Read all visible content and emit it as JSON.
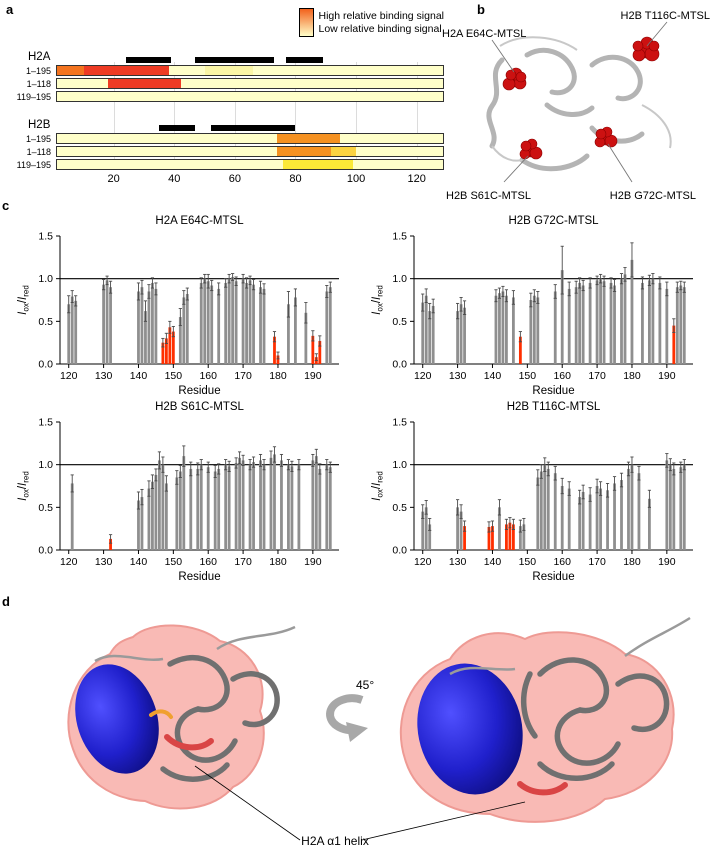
{
  "figure": {
    "panel_labels": {
      "a": "a",
      "b": "b",
      "c": "c",
      "d": "d"
    }
  },
  "panel_a": {
    "legend": {
      "high": "High relative binding signal",
      "low": "Low relative binding signal",
      "high_color": "#f2611c",
      "low_color": "#ffffc9"
    },
    "base_color": "#ffffc9",
    "domain": {
      "min": 1,
      "max": 129
    },
    "axis_ticks": [
      20,
      40,
      60,
      80,
      100,
      120
    ],
    "groups": [
      {
        "name": "H2A",
        "helix_bars": [
          [
            24,
            39
          ],
          [
            47,
            73
          ],
          [
            77,
            89
          ]
        ],
        "rows": [
          {
            "label": "1–195",
            "segments": [
              {
                "from": 1,
                "to": 10,
                "color": "#f4741f"
              },
              {
                "from": 10,
                "to": 38,
                "color": "#ee3b24"
              },
              {
                "from": 50,
                "to": 66,
                "color": "#fbf6a6"
              }
            ]
          },
          {
            "label": "1–118",
            "segments": [
              {
                "from": 18,
                "to": 42,
                "color": "#ee3b24"
              }
            ]
          },
          {
            "label": "119–195",
            "segments": []
          }
        ]
      },
      {
        "name": "H2B",
        "helix_bars": [
          [
            35,
            47
          ],
          [
            52,
            80
          ]
        ],
        "rows": [
          {
            "label": "1–195",
            "segments": [
              {
                "from": 74,
                "to": 95,
                "color": "#f59121"
              }
            ]
          },
          {
            "label": "1–118",
            "segments": [
              {
                "from": 74,
                "to": 92,
                "color": "#f59121"
              },
              {
                "from": 92,
                "to": 100,
                "color": "#fbd341"
              }
            ]
          },
          {
            "label": "119–195",
            "segments": [
              {
                "from": 76,
                "to": 99,
                "color": "#fbe937"
              }
            ]
          }
        ]
      }
    ]
  },
  "panel_b": {
    "labels": [
      {
        "text": "H2A E64C-MTSL"
      },
      {
        "text": "H2B T116C-MTSL"
      },
      {
        "text": "H2B S61C-MTSL"
      },
      {
        "text": "H2B G72C-MTSL"
      }
    ],
    "sphere_color": "#cc1111",
    "ribbon_color": "#b4b4b4"
  },
  "chart_style": {
    "bar_color": "#8f8f8f",
    "red_color": "#ff2f00",
    "error_color": "#4a4a4a",
    "reference_color": "#000000"
  },
  "bars_format": "[residue, Iox/Ired, error, is_red]",
  "chart_data": [
    {
      "type": "bar",
      "title": "H2A E64C-MTSL",
      "xlabel": "Residue",
      "ylabel": "Iox/Ired",
      "ylabel_parts": {
        "num": "I",
        "num_sub": "ox",
        "slash": "/",
        "den": "I",
        "den_sub": "red"
      },
      "xlim": [
        117.5,
        197.5
      ],
      "ylim": [
        0,
        1.5
      ],
      "xticks": [
        120,
        130,
        140,
        150,
        160,
        170,
        180,
        190
      ],
      "yticks": [
        0.0,
        0.5,
        1.0,
        1.5
      ],
      "reference_line": 1.0,
      "bars": [
        [
          120,
          0.7,
          0.1,
          0
        ],
        [
          121,
          0.79,
          0.07,
          0
        ],
        [
          122,
          0.74,
          0.06,
          0
        ],
        [
          130,
          0.93,
          0.06,
          0
        ],
        [
          131,
          0.98,
          0.05,
          0
        ],
        [
          132,
          0.9,
          0.07,
          0
        ],
        [
          140,
          0.85,
          0.1,
          0
        ],
        [
          141,
          0.9,
          0.08,
          0
        ],
        [
          142,
          0.62,
          0.12,
          0
        ],
        [
          143,
          0.85,
          0.08,
          0
        ],
        [
          144,
          0.95,
          0.06,
          0
        ],
        [
          145,
          0.88,
          0.07,
          0
        ],
        [
          147,
          0.25,
          0.05,
          1
        ],
        [
          148,
          0.3,
          0.06,
          1
        ],
        [
          149,
          0.43,
          0.07,
          1
        ],
        [
          150,
          0.38,
          0.06,
          1
        ],
        [
          152,
          0.55,
          0.1,
          0
        ],
        [
          153,
          0.78,
          0.08,
          0
        ],
        [
          154,
          0.82,
          0.07,
          0
        ],
        [
          158,
          0.95,
          0.06,
          0
        ],
        [
          159,
          1.0,
          0.05,
          0
        ],
        [
          160,
          0.97,
          0.08,
          0
        ],
        [
          161,
          0.92,
          0.06,
          0
        ],
        [
          163,
          0.88,
          0.07,
          0
        ],
        [
          165,
          0.95,
          0.05,
          0
        ],
        [
          166,
          1.0,
          0.05,
          0
        ],
        [
          167,
          1.02,
          0.04,
          0
        ],
        [
          168,
          0.97,
          0.05,
          0
        ],
        [
          170,
          1.0,
          0.05,
          0
        ],
        [
          171,
          0.95,
          0.06,
          0
        ],
        [
          172,
          0.98,
          0.05,
          0
        ],
        [
          173,
          0.93,
          0.06,
          0
        ],
        [
          175,
          0.9,
          0.07,
          0
        ],
        [
          176,
          0.88,
          0.06,
          0
        ],
        [
          179,
          0.32,
          0.06,
          1
        ],
        [
          180,
          0.1,
          0.04,
          1
        ],
        [
          183,
          0.7,
          0.15,
          0
        ],
        [
          185,
          0.78,
          0.1,
          0
        ],
        [
          188,
          0.6,
          0.12,
          0
        ],
        [
          190,
          0.33,
          0.06,
          1
        ],
        [
          191,
          0.08,
          0.04,
          1
        ],
        [
          192,
          0.27,
          0.06,
          1
        ],
        [
          194,
          0.85,
          0.07,
          0
        ],
        [
          195,
          0.9,
          0.06,
          0
        ]
      ]
    },
    {
      "type": "bar",
      "title": "H2B G72C-MTSL",
      "xlabel": "Residue",
      "ylabel": "Iox/Ired",
      "ylabel_parts": {
        "num": "I",
        "num_sub": "ox",
        "slash": "/",
        "den": "I",
        "den_sub": "red"
      },
      "xlim": [
        117.5,
        197.5
      ],
      "ylim": [
        0,
        1.5
      ],
      "xticks": [
        120,
        130,
        140,
        150,
        160,
        170,
        180,
        190
      ],
      "yticks": [
        0.0,
        0.5,
        1.0,
        1.5
      ],
      "reference_line": 1.0,
      "bars": [
        [
          120,
          0.72,
          0.1,
          0
        ],
        [
          121,
          0.8,
          0.08,
          0
        ],
        [
          122,
          0.62,
          0.09,
          0
        ],
        [
          123,
          0.68,
          0.08,
          0
        ],
        [
          130,
          0.62,
          0.09,
          0
        ],
        [
          131,
          0.7,
          0.08,
          0
        ],
        [
          132,
          0.66,
          0.08,
          0
        ],
        [
          141,
          0.8,
          0.07,
          0
        ],
        [
          142,
          0.83,
          0.06,
          0
        ],
        [
          143,
          0.85,
          0.06,
          0
        ],
        [
          144,
          0.8,
          0.07,
          0
        ],
        [
          146,
          0.78,
          0.08,
          0
        ],
        [
          148,
          0.32,
          0.06,
          1
        ],
        [
          151,
          0.75,
          0.08,
          0
        ],
        [
          152,
          0.8,
          0.07,
          0
        ],
        [
          153,
          0.78,
          0.07,
          0
        ],
        [
          158,
          0.85,
          0.08,
          0
        ],
        [
          160,
          1.1,
          0.28,
          0
        ],
        [
          162,
          0.88,
          0.08,
          0
        ],
        [
          164,
          0.9,
          0.07,
          0
        ],
        [
          165,
          0.95,
          0.06,
          0
        ],
        [
          166,
          0.92,
          0.06,
          0
        ],
        [
          168,
          0.95,
          0.06,
          0
        ],
        [
          170,
          0.98,
          0.05,
          0
        ],
        [
          171,
          1.0,
          0.05,
          0
        ],
        [
          172,
          0.97,
          0.06,
          0
        ],
        [
          174,
          0.95,
          0.06,
          0
        ],
        [
          175,
          0.92,
          0.07,
          0
        ],
        [
          177,
          1.0,
          0.06,
          0
        ],
        [
          178,
          1.05,
          0.08,
          0
        ],
        [
          180,
          1.22,
          0.2,
          0
        ],
        [
          183,
          0.95,
          0.07,
          0
        ],
        [
          185,
          0.98,
          0.06,
          0
        ],
        [
          186,
          1.0,
          0.06,
          0
        ],
        [
          188,
          0.95,
          0.07,
          0
        ],
        [
          190,
          0.88,
          0.08,
          0
        ],
        [
          192,
          0.45,
          0.08,
          1
        ],
        [
          193,
          0.9,
          0.06,
          0
        ],
        [
          194,
          0.92,
          0.05,
          0
        ],
        [
          195,
          0.9,
          0.06,
          0
        ]
      ]
    },
    {
      "type": "bar",
      "title": "H2B S61C-MTSL",
      "xlabel": "Residue",
      "ylabel": "Iox/Ired",
      "ylabel_parts": {
        "num": "I",
        "num_sub": "ox",
        "slash": "/",
        "den": "I",
        "den_sub": "red"
      },
      "xlim": [
        117.5,
        197.5
      ],
      "ylim": [
        0,
        1.5
      ],
      "xticks": [
        120,
        130,
        140,
        150,
        160,
        170,
        180,
        190
      ],
      "yticks": [
        0.0,
        0.5,
        1.0,
        1.5
      ],
      "reference_line": 1.0,
      "bars": [
        [
          121,
          0.78,
          0.1,
          0
        ],
        [
          132,
          0.13,
          0.05,
          1
        ],
        [
          140,
          0.58,
          0.1,
          0
        ],
        [
          141,
          0.62,
          0.09,
          0
        ],
        [
          143,
          0.72,
          0.09,
          0
        ],
        [
          144,
          0.8,
          0.08,
          0
        ],
        [
          145,
          0.88,
          0.07,
          0
        ],
        [
          146,
          1.05,
          0.1,
          0
        ],
        [
          147,
          1.0,
          0.09,
          0
        ],
        [
          148,
          0.78,
          0.09,
          0
        ],
        [
          151,
          0.85,
          0.08,
          0
        ],
        [
          152,
          0.92,
          0.07,
          0
        ],
        [
          153,
          1.1,
          0.12,
          0
        ],
        [
          155,
          0.95,
          0.08,
          0
        ],
        [
          157,
          0.95,
          0.07,
          0
        ],
        [
          158,
          1.0,
          0.06,
          0
        ],
        [
          160,
          0.97,
          0.06,
          0
        ],
        [
          162,
          0.92,
          0.07,
          0
        ],
        [
          163,
          0.95,
          0.06,
          0
        ],
        [
          165,
          1.0,
          0.06,
          0
        ],
        [
          166,
          0.98,
          0.06,
          0
        ],
        [
          168,
          1.02,
          0.06,
          0
        ],
        [
          169,
          1.08,
          0.07,
          0
        ],
        [
          170,
          1.05,
          0.06,
          0
        ],
        [
          172,
          1.0,
          0.06,
          0
        ],
        [
          173,
          1.03,
          0.06,
          0
        ],
        [
          175,
          1.05,
          0.07,
          0
        ],
        [
          176,
          1.0,
          0.06,
          0
        ],
        [
          178,
          1.08,
          0.08,
          0
        ],
        [
          179,
          1.12,
          0.09,
          0
        ],
        [
          181,
          1.05,
          0.07,
          0
        ],
        [
          183,
          1.0,
          0.06,
          0
        ],
        [
          184,
          0.98,
          0.06,
          0
        ],
        [
          186,
          1.0,
          0.06,
          0
        ],
        [
          190,
          1.05,
          0.07,
          0
        ],
        [
          191,
          1.1,
          0.08,
          0
        ],
        [
          192,
          0.95,
          0.06,
          0
        ],
        [
          194,
          1.0,
          0.06,
          0
        ],
        [
          195,
          0.97,
          0.06,
          0
        ]
      ]
    },
    {
      "type": "bar",
      "title": "H2B T116C-MTSL",
      "xlabel": "Residue",
      "ylabel": "Iox/Ired",
      "ylabel_parts": {
        "num": "I",
        "num_sub": "ox",
        "slash": "/",
        "den": "I",
        "den_sub": "red"
      },
      "xlim": [
        117.5,
        197.5
      ],
      "ylim": [
        0,
        1.5
      ],
      "xticks": [
        120,
        130,
        140,
        150,
        160,
        170,
        180,
        190
      ],
      "yticks": [
        0.0,
        0.5,
        1.0,
        1.5
      ],
      "reference_line": 1.0,
      "bars": [
        [
          120,
          0.45,
          0.08,
          0
        ],
        [
          121,
          0.5,
          0.08,
          0
        ],
        [
          122,
          0.3,
          0.07,
          0
        ],
        [
          130,
          0.5,
          0.09,
          0
        ],
        [
          131,
          0.45,
          0.08,
          0
        ],
        [
          132,
          0.28,
          0.06,
          1
        ],
        [
          139,
          0.27,
          0.06,
          1
        ],
        [
          140,
          0.28,
          0.06,
          1
        ],
        [
          142,
          0.5,
          0.09,
          0
        ],
        [
          144,
          0.3,
          0.06,
          1
        ],
        [
          145,
          0.32,
          0.06,
          1
        ],
        [
          146,
          0.3,
          0.06,
          1
        ],
        [
          148,
          0.28,
          0.07,
          0
        ],
        [
          149,
          0.3,
          0.07,
          0
        ],
        [
          153,
          0.85,
          0.09,
          0
        ],
        [
          154,
          0.92,
          0.08,
          0
        ],
        [
          155,
          1.0,
          0.08,
          0
        ],
        [
          156,
          0.95,
          0.08,
          0
        ],
        [
          158,
          0.9,
          0.08,
          0
        ],
        [
          160,
          0.75,
          0.09,
          0
        ],
        [
          162,
          0.72,
          0.08,
          0
        ],
        [
          165,
          0.62,
          0.08,
          0
        ],
        [
          166,
          0.68,
          0.08,
          0
        ],
        [
          168,
          0.65,
          0.08,
          0
        ],
        [
          170,
          0.75,
          0.08,
          0
        ],
        [
          171,
          0.72,
          0.08,
          0
        ],
        [
          173,
          0.7,
          0.08,
          0
        ],
        [
          175,
          0.78,
          0.08,
          0
        ],
        [
          177,
          0.82,
          0.08,
          0
        ],
        [
          179,
          0.95,
          0.08,
          0
        ],
        [
          180,
          1.0,
          0.09,
          0
        ],
        [
          182,
          0.9,
          0.08,
          0
        ],
        [
          185,
          0.6,
          0.1,
          0
        ],
        [
          190,
          1.05,
          0.08,
          0
        ],
        [
          191,
          1.0,
          0.07,
          0
        ],
        [
          192,
          0.95,
          0.07,
          0
        ],
        [
          194,
          0.97,
          0.06,
          0
        ],
        [
          195,
          1.0,
          0.06,
          0
        ]
      ]
    }
  ],
  "panel_d": {
    "rotation_label": "45°",
    "annotation": "H2A α1 helix",
    "surface_color": "#f4756b",
    "ellipsoid_color": "#1a1ac0",
    "ribbon_color": "#707070",
    "highlight_color": "#d94545"
  }
}
